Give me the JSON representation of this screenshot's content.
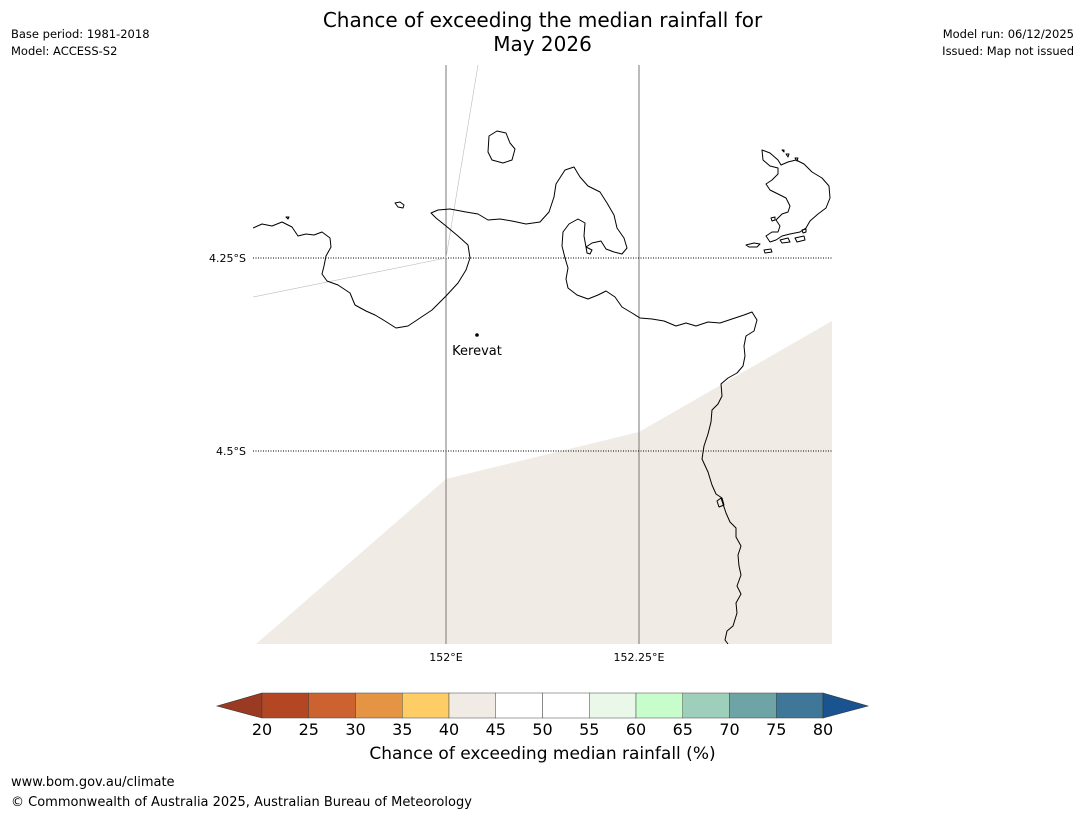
{
  "title": {
    "line1": "Chance of exceeding the median rainfall for",
    "line2": "May 2026"
  },
  "meta_left": {
    "base_period": "Base period: 1981-2018",
    "model": "Model: ACCESS-S2"
  },
  "meta_right": {
    "model_run": "Model run: 06/12/2025",
    "issued": "Issued: Map not issued"
  },
  "map": {
    "lat_labels": [
      "4.25°S",
      "4.5°S"
    ],
    "lon_labels": [
      "152°E",
      "152.25°E"
    ],
    "place": "Kerevat",
    "colors": {
      "coast": "#000000",
      "grid": "#555555",
      "shade": "#f0ebe5"
    }
  },
  "colorbar": {
    "ticks": [
      "20",
      "25",
      "30",
      "35",
      "40",
      "45",
      "50",
      "55",
      "60",
      "65",
      "70",
      "75",
      "80"
    ],
    "colors": [
      "#b34723",
      "#cc6230",
      "#e49443",
      "#fecd65",
      "#f0ebe5",
      "#ffffff",
      "#ffffff",
      "#eaf8ea",
      "#c6fdca",
      "#9ecfba",
      "#6ea4a6",
      "#3e7797"
    ],
    "low_color": "#9a3a22",
    "high_color": "#195390",
    "label": "Chance of exceeding median rainfall (%)"
  },
  "footer": {
    "url": "www.bom.gov.au/climate",
    "copyright": "© Commonwealth of Australia 2025, Australian Bureau of Meteorology"
  }
}
